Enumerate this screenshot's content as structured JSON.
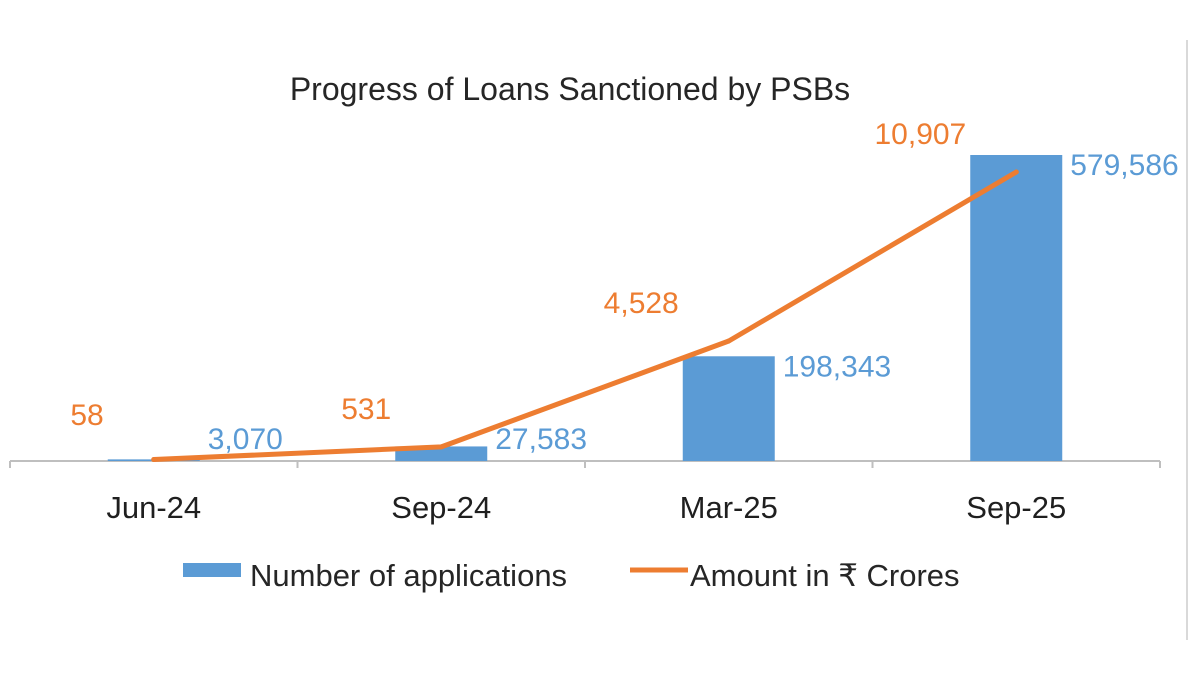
{
  "chart_data": {
    "type": "bar+line",
    "title": "Progress of Loans Sanctioned by PSBs",
    "categories": [
      "Jun-24",
      "Sep-24",
      "Mar-25",
      "Sep-25"
    ],
    "series": [
      {
        "name": "Number of applications",
        "type": "bar",
        "color": "#5b9bd5",
        "values": [
          3070,
          27583,
          198343,
          579586
        ],
        "labels": [
          "3,070",
          "27,583",
          "198,343",
          "579,586"
        ]
      },
      {
        "name": "Amount in ₹ Crores",
        "type": "line",
        "color": "#ed7d31",
        "values": [
          58,
          531,
          4528,
          10907
        ],
        "labels": [
          "58",
          "531",
          "4,528",
          "10,907"
        ]
      }
    ],
    "legend_position": "bottom",
    "grid": false
  }
}
